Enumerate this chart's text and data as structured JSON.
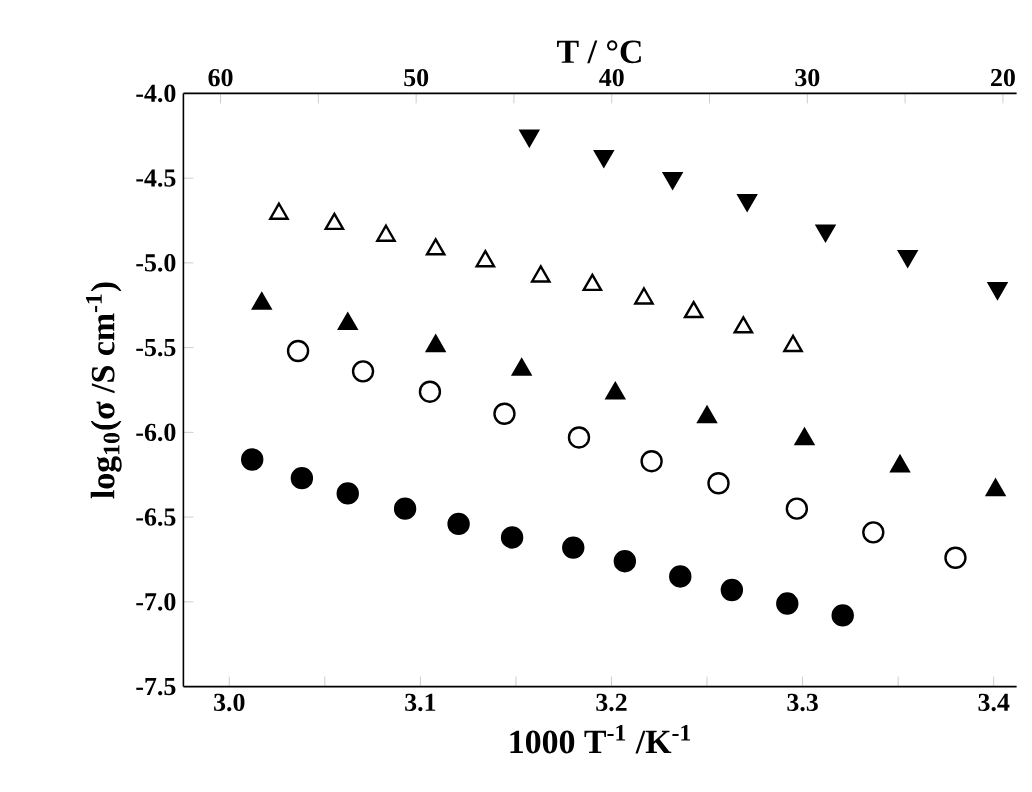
{
  "chart_data": {
    "type": "scatter",
    "xlabel": "1000 T$^{-1}$ /K$^{-1}$",
    "ylabel": "log$_{10}$(σ /S cm$^{-1}$)",
    "x2label": "T / °C",
    "xlim": [
      2.976,
      3.412
    ],
    "xticks": [
      {
        "value": 3.0,
        "label": "3.0"
      },
      {
        "value": 3.05,
        "label": null
      },
      {
        "value": 3.1,
        "label": "3.1"
      },
      {
        "value": 3.15,
        "label": null
      },
      {
        "value": 3.2,
        "label": "3.2"
      },
      {
        "value": 3.25,
        "label": null
      },
      {
        "value": 3.3,
        "label": "3.3"
      },
      {
        "value": 3.35,
        "label": null
      },
      {
        "value": 3.4,
        "label": "3.4"
      }
    ],
    "x2lim": [
      61.9,
      19.3
    ],
    "x2ticks": [
      60,
      {
        "value": 55,
        "label": null
      },
      50,
      {
        "value": 45,
        "label": null
      },
      40,
      {
        "value": 35,
        "label": null
      },
      30,
      {
        "value": 25,
        "label": null
      },
      20
    ],
    "grid": false,
    "ylim": [
      -7.5,
      -4.0
    ],
    "yticks": [
      {
        "value": -7.5,
        "label": "-7.5"
      },
      {
        "value": -7.0,
        "label": "-7.0"
      },
      {
        "value": -6.5,
        "label": "-6.5"
      },
      {
        "value": -6.0,
        "label": "-6.0"
      },
      {
        "value": -5.5,
        "label": "-5.5"
      },
      {
        "value": -5.0,
        "label": "-5.0"
      },
      {
        "value": -4.5,
        "label": "-4.5"
      },
      {
        "value": -4.0,
        "label": "-4.0"
      }
    ],
    "series": [
      {
        "color": "#000000",
        "marker": "circle",
        "x": [
          3.012,
          3.038,
          3.062,
          3.092,
          3.12,
          3.148,
          3.18,
          3.207,
          3.236,
          3.263,
          3.292,
          3.321
        ],
        "values": [
          -6.16,
          -6.27,
          -6.36,
          -6.45,
          -6.54,
          -6.62,
          -6.68,
          -6.76,
          -6.85,
          -6.93,
          -7.01,
          -7.08
        ]
      },
      {
        "color": "#000000",
        "marker": "circle-open",
        "x": [
          3.036,
          3.07,
          3.105,
          3.144,
          3.183,
          3.221,
          3.256,
          3.297,
          3.337,
          3.38
        ],
        "values": [
          -5.52,
          -5.64,
          -5.76,
          -5.89,
          -6.03,
          -6.17,
          -6.3,
          -6.45,
          -6.59,
          -6.74
        ]
      },
      {
        "color": "#000000",
        "marker": "triangle",
        "x": [
          3.017,
          3.062,
          3.108,
          3.153,
          3.202,
          3.25,
          3.301,
          3.351,
          3.401
        ],
        "values": [
          -5.24,
          -5.36,
          -5.49,
          -5.63,
          -5.77,
          -5.91,
          -6.04,
          -6.2,
          -6.34
        ]
      },
      {
        "color": "#000000",
        "marker": "triangle-open",
        "x": [
          3.026,
          3.055,
          3.082,
          3.108,
          3.134,
          3.163,
          3.19,
          3.217,
          3.243,
          3.269,
          3.295
        ],
        "values": [
          -4.71,
          -4.77,
          -4.84,
          -4.92,
          -4.99,
          -5.08,
          -5.13,
          -5.21,
          -5.29,
          -5.38,
          -5.49
        ]
      },
      {
        "color": "#000000",
        "marker": "triangle-down",
        "x": [
          3.157,
          3.196,
          3.232,
          3.271,
          3.312,
          3.355,
          3.402
        ],
        "values": [
          -4.25,
          -4.37,
          -4.5,
          -4.63,
          -4.81,
          -4.96,
          -5.15
        ]
      }
    ]
  }
}
